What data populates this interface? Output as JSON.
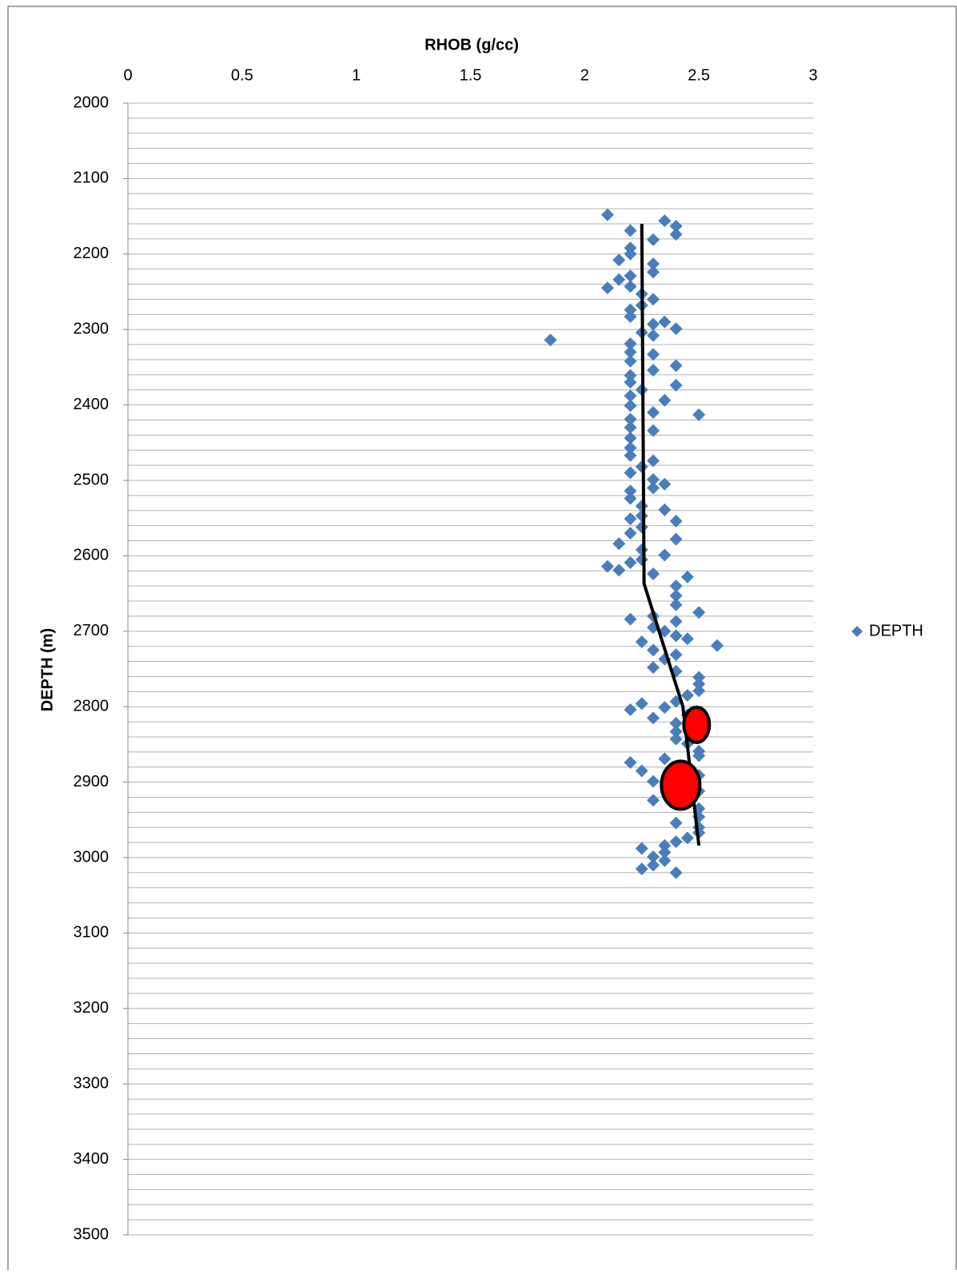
{
  "chart_data": {
    "type": "scatter",
    "x_label": "RHOB (g/cc)",
    "y_label": "DEPTH (m)",
    "xlim": [
      0,
      3
    ],
    "xticks": [
      0,
      0.5,
      1,
      1.5,
      2,
      2.5,
      3
    ],
    "ylim": [
      2000,
      3500
    ],
    "y_inverted": true,
    "yticks": [
      2000,
      2100,
      2200,
      2300,
      2400,
      2500,
      2600,
      2700,
      2800,
      2900,
      3000,
      3100,
      3200,
      3300,
      3400,
      3500
    ],
    "y_minor_ticks": [
      2000,
      2020,
      2040,
      2060,
      2080,
      2100,
      2120,
      2140,
      2160,
      2180,
      2200,
      2220,
      2240,
      2260,
      2280,
      2300,
      2320,
      2340,
      2360,
      2380,
      2400,
      2420,
      2440,
      2460,
      2480,
      2500,
      2520,
      2540,
      2560,
      2580,
      2600,
      2620,
      2640,
      2660,
      2680,
      2700,
      2720,
      2740,
      2760,
      2780,
      2800,
      2820,
      2840,
      2860,
      2880,
      2900,
      2920,
      2940,
      2960,
      2980,
      3000,
      3020,
      3040,
      3060,
      3080,
      3100,
      3120,
      3140,
      3160,
      3180,
      3200,
      3220,
      3240,
      3260,
      3280,
      3300,
      3320,
      3340,
      3360,
      3380,
      3400,
      3420,
      3440,
      3460,
      3480,
      3500
    ],
    "grid": true,
    "legend": "right",
    "series": [
      {
        "name": "DEPTH",
        "color": "#4a7ebb",
        "x": [
          2.1,
          2.35,
          2.4,
          2.2,
          2.4,
          2.3,
          2.2,
          2.2,
          2.15,
          2.3,
          2.3,
          2.2,
          2.15,
          2.1,
          2.2,
          2.25,
          2.3,
          2.25,
          2.2,
          2.2,
          2.35,
          2.3,
          2.4,
          2.25,
          2.3,
          1.85,
          2.2,
          2.2,
          2.3,
          2.2,
          2.4,
          2.3,
          2.2,
          2.2,
          2.4,
          2.25,
          2.2,
          2.35,
          2.2,
          2.3,
          2.5,
          2.2,
          2.2,
          2.3,
          2.2,
          2.2,
          2.2,
          2.3,
          2.25,
          2.2,
          2.3,
          2.35,
          2.3,
          2.2,
          2.2,
          2.25,
          2.35,
          2.25,
          2.2,
          2.4,
          2.25,
          2.2,
          2.4,
          2.15,
          2.25,
          2.35,
          2.25,
          2.2,
          2.1,
          2.15,
          2.3,
          2.45,
          2.4,
          2.4,
          2.4,
          2.5,
          2.3,
          2.2,
          2.4,
          2.3,
          2.35,
          2.4,
          2.45,
          2.25,
          2.58,
          2.3,
          2.4,
          2.35,
          2.3,
          2.4,
          2.5,
          2.5,
          2.5,
          2.45,
          2.4,
          2.25,
          2.35,
          2.2,
          2.45,
          2.3,
          2.4,
          2.4,
          2.4,
          2.45,
          2.5,
          2.5,
          2.35,
          2.2,
          2.25,
          2.5,
          2.3,
          2.5,
          2.3,
          2.5,
          2.5,
          2.4,
          2.5,
          2.5,
          2.45,
          2.4,
          2.35,
          2.25,
          2.35,
          2.3,
          2.35,
          2.3,
          2.25,
          2.4
        ],
        "values": [
          2148,
          2156,
          2163,
          2169,
          2174,
          2181,
          2192,
          2200,
          2208,
          2213,
          2224,
          2229,
          2234,
          2245,
          2243,
          2253,
          2260,
          2268,
          2274,
          2283,
          2290,
          2293,
          2299,
          2304,
          2308,
          2314,
          2319,
          2330,
          2333,
          2342,
          2348,
          2354,
          2361,
          2370,
          2374,
          2380,
          2388,
          2394,
          2401,
          2410,
          2413,
          2419,
          2430,
          2434,
          2444,
          2457,
          2467,
          2474,
          2482,
          2490,
          2499,
          2505,
          2510,
          2514,
          2524,
          2534,
          2539,
          2547,
          2551,
          2554,
          2562,
          2570,
          2578,
          2584,
          2592,
          2599,
          2605,
          2609,
          2614,
          2619,
          2624,
          2628,
          2640,
          2653,
          2665,
          2675,
          2680,
          2684,
          2687,
          2695,
          2700,
          2706,
          2710,
          2714,
          2719,
          2725,
          2731,
          2737,
          2748,
          2753,
          2761,
          2770,
          2779,
          2785,
          2793,
          2796,
          2801,
          2804,
          2811,
          2815,
          2822,
          2833,
          2843,
          2849,
          2859,
          2865,
          2869,
          2874,
          2885,
          2891,
          2899,
          2912,
          2924,
          2935,
          2946,
          2954,
          2960,
          2967,
          2974,
          2979,
          2984,
          2988,
          2993,
          2999,
          3004,
          3010,
          3015,
          3020
        ]
      }
    ],
    "trend": {
      "color": "#000000",
      "x": [
        2.25,
        2.26,
        2.43,
        2.5
      ],
      "values": [
        2160,
        2637,
        2800,
        2984
      ]
    },
    "highlights": {
      "color": "#ff0000",
      "x": [
        2.49,
        2.42
      ],
      "values": [
        2824,
        2904
      ]
    }
  }
}
